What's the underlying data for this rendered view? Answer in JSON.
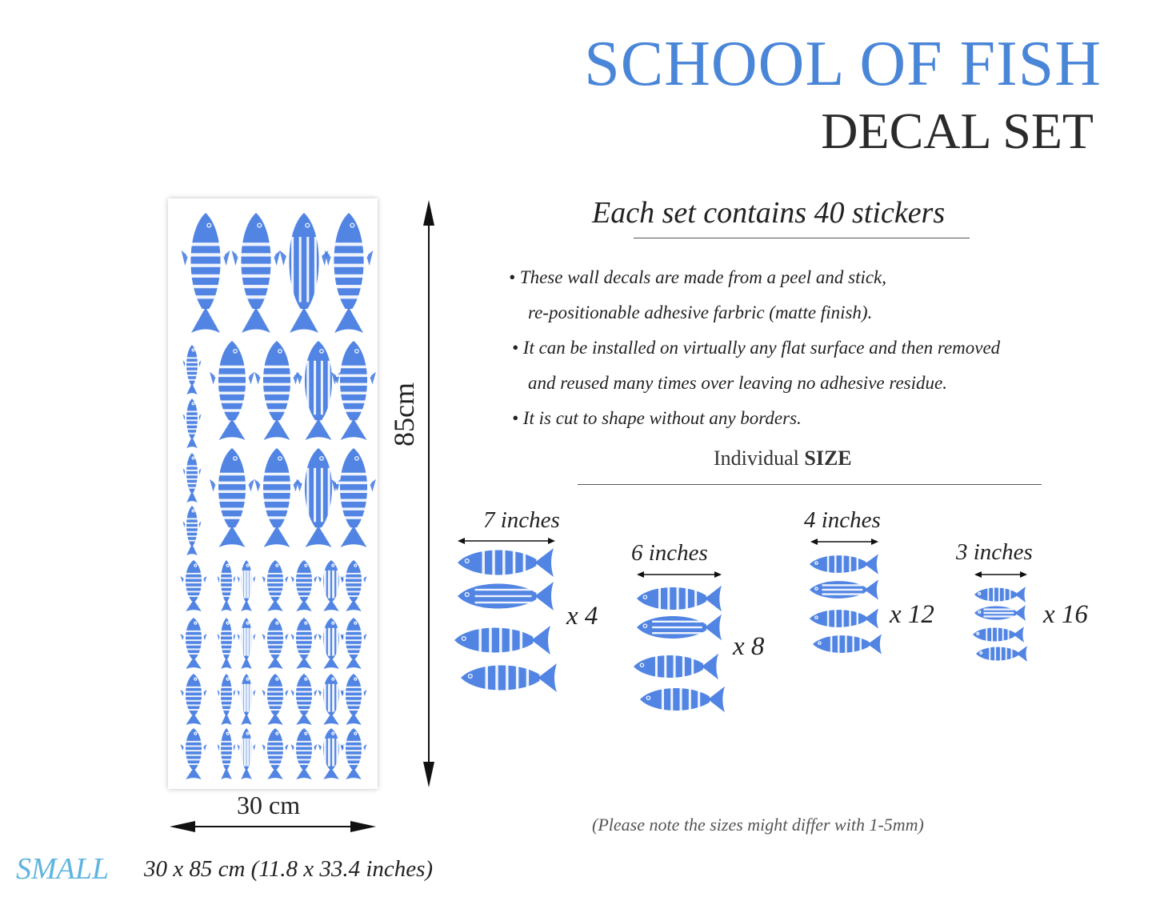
{
  "title": {
    "line1": "SCHOOL OF FISH",
    "line2": "DECAL SET"
  },
  "contains": "Each set contains 40 stickers",
  "bullets": [
    "• These wall decals are made from a peel and stick,",
    "re-positionable adhesive farbric (matte finish).",
    "• It can be installed on virtually any flat surface and then removed",
    "and reused many times over leaving no adhesive residue.",
    "• It is cut to shape without any borders."
  ],
  "individual_size": {
    "prefix": "Individual",
    "bold": "SIZE"
  },
  "sizes": [
    {
      "label": "7 inches",
      "qty": "x 4"
    },
    {
      "label": "6 inches",
      "qty": "x 8"
    },
    {
      "label": "4 inches",
      "qty": "x 12"
    },
    {
      "label": "3 inches",
      "qty": "x 16"
    }
  ],
  "dimensions": {
    "height": "85cm",
    "width": "30 cm"
  },
  "note": "(Please note the sizes might differ with 1-5mm)",
  "small": {
    "label": "SMALL",
    "dims": "30 x 85 cm (11.8 x 33.4 inches)"
  },
  "colors": {
    "accent_blue": "#4a86d8",
    "fish_blue": "#3f78e0",
    "small_blue": "#5fb4e0"
  }
}
